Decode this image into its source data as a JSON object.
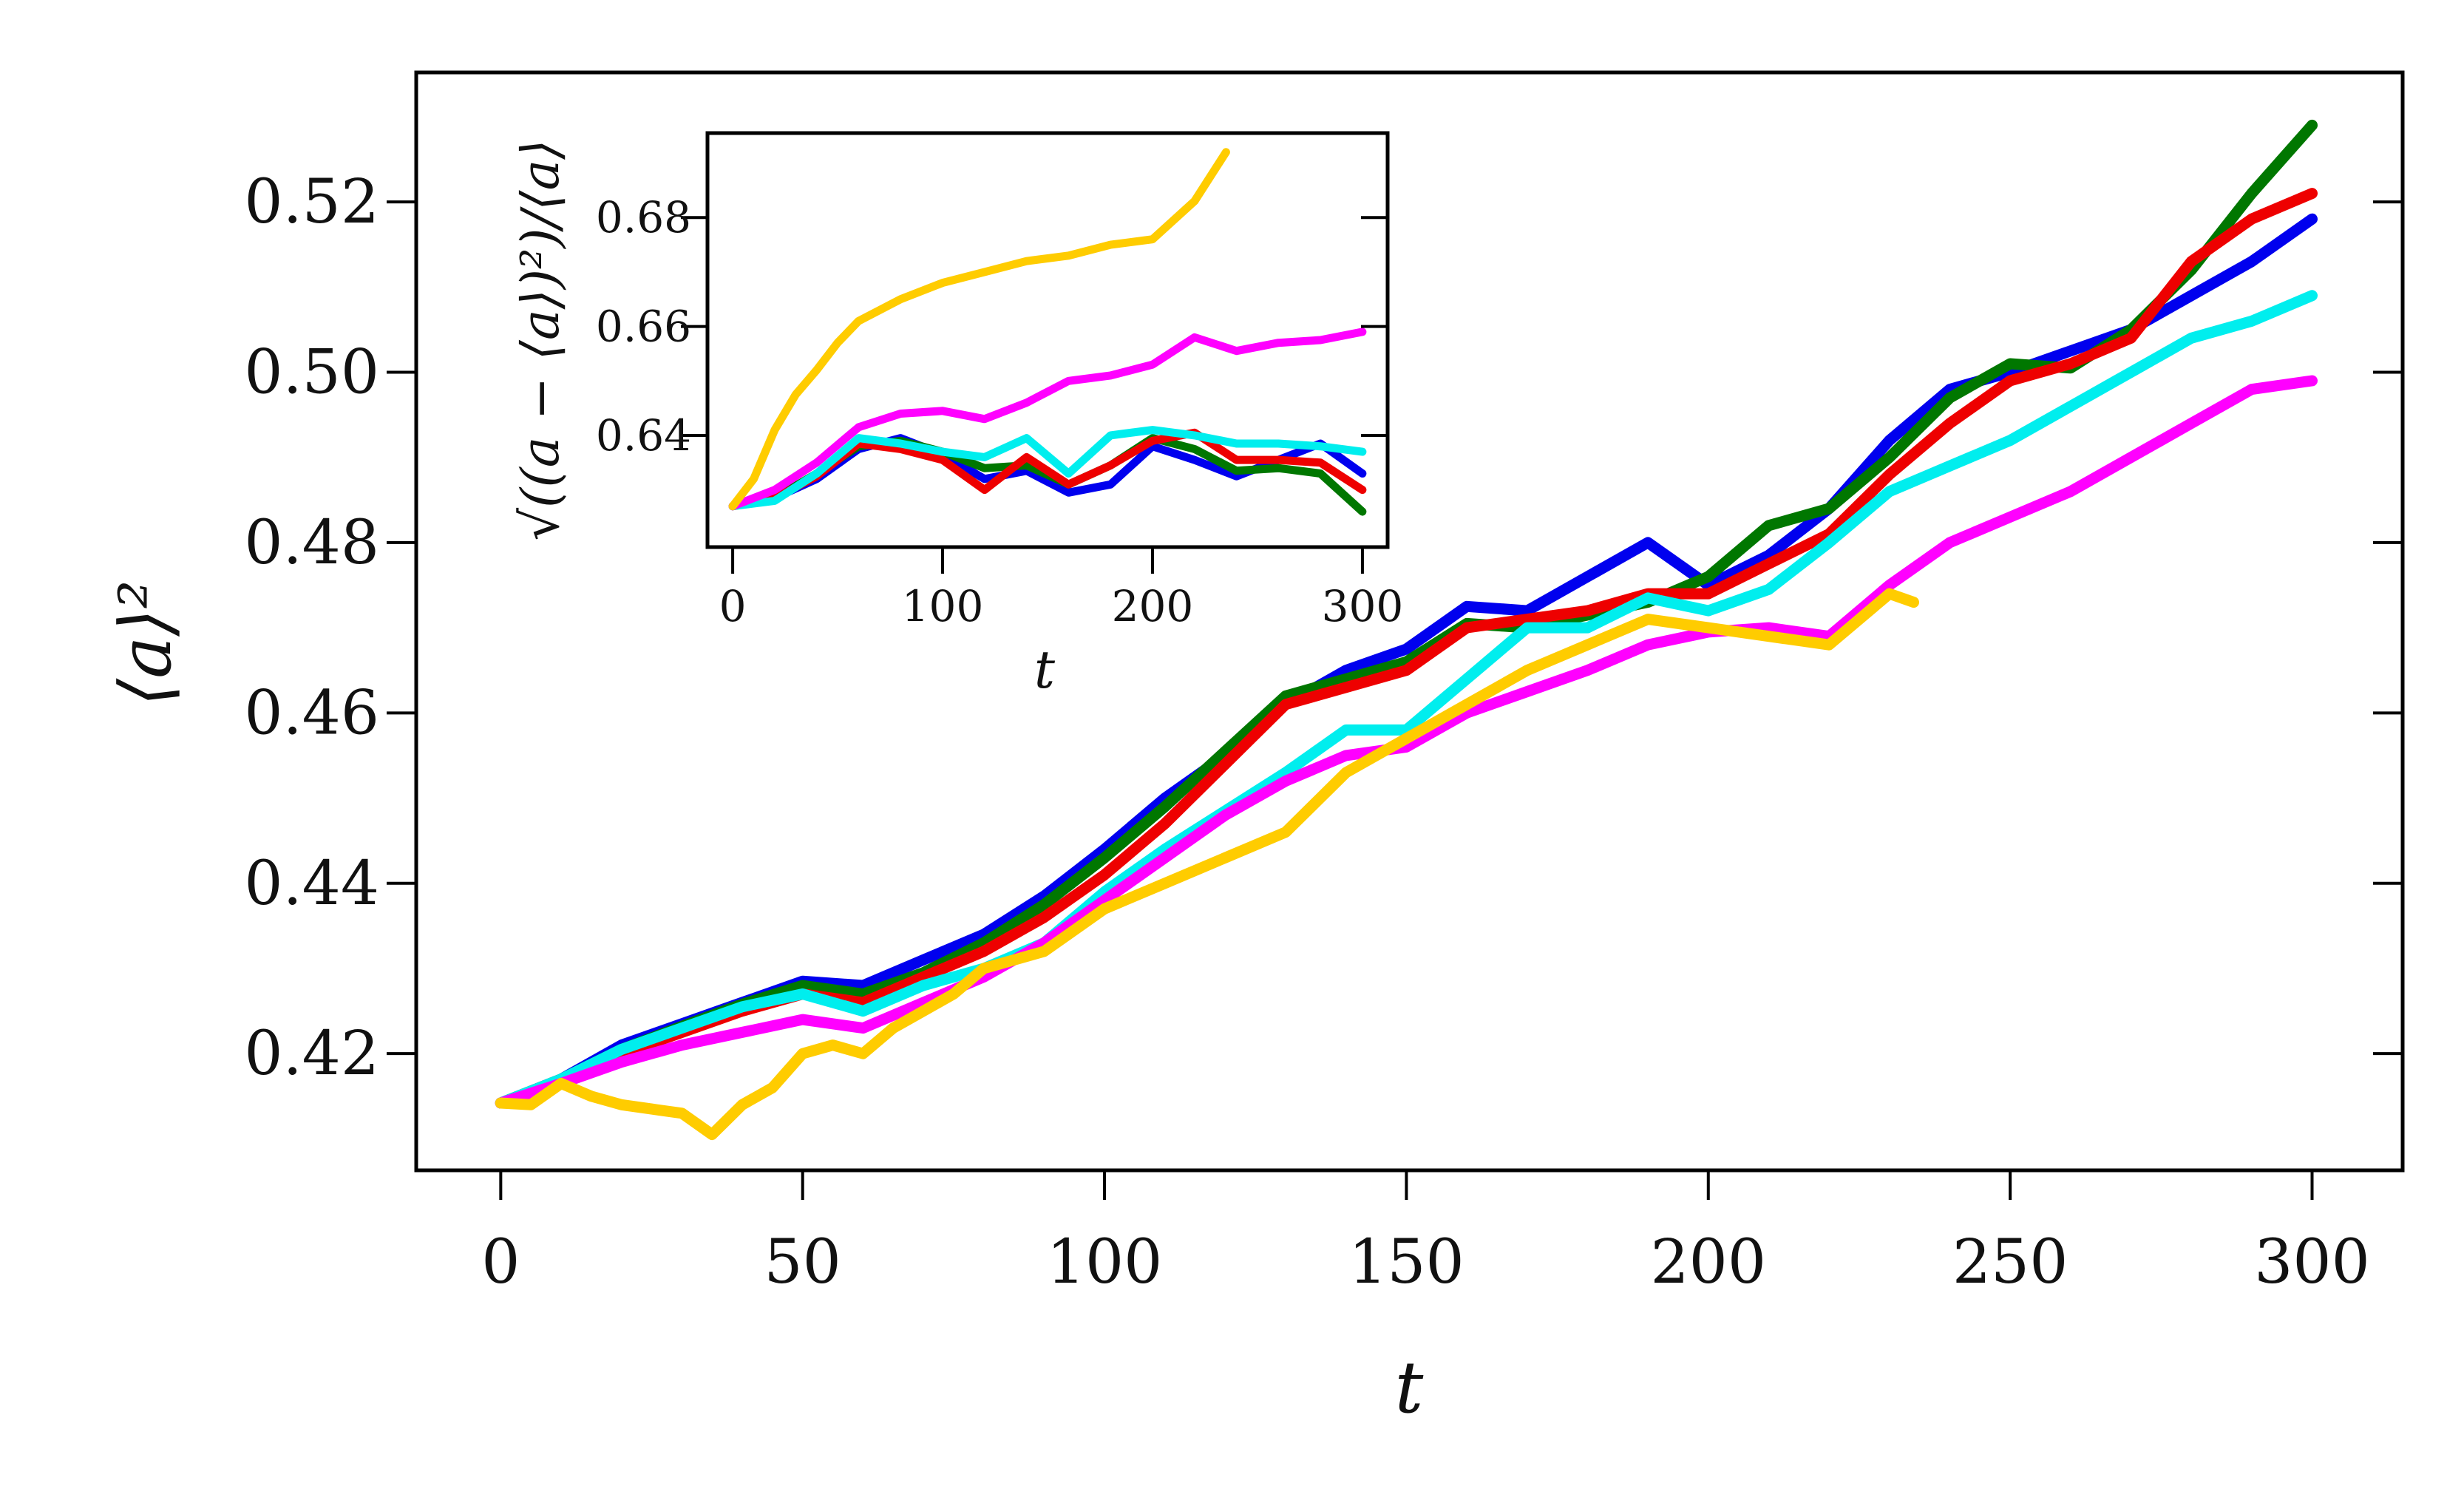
{
  "chart_data": [
    {
      "id": "main",
      "type": "line",
      "xlabel": "t",
      "ylabel": "⟨a⟩²",
      "xlim": [
        -14,
        315
      ],
      "ylim": [
        0.4063,
        0.5352
      ],
      "xticks": [
        0,
        50,
        100,
        150,
        200,
        250,
        300
      ],
      "xtick_labels": [
        "0",
        "50",
        "100",
        "150",
        "200",
        "250",
        "300"
      ],
      "yticks": [
        0.42,
        0.44,
        0.46,
        0.48,
        0.5,
        0.52
      ],
      "ytick_labels": [
        "0.42",
        "0.44",
        "0.46",
        "0.48",
        "0.50",
        "0.52"
      ],
      "ticks_on_right": true,
      "ticks_on_top": false,
      "grid": false,
      "legend": "none",
      "series": [
        {
          "color": "#0000ee",
          "x": [
            0,
            10,
            20,
            30,
            40,
            50,
            60,
            70,
            80,
            90,
            100,
            110,
            120,
            130,
            140,
            150,
            160,
            170,
            180,
            190,
            200,
            210,
            220,
            230,
            240,
            250,
            260,
            270,
            280,
            290,
            300
          ],
          "y": [
            0.4142,
            0.417,
            0.421,
            0.4235,
            0.426,
            0.4285,
            0.428,
            0.431,
            0.434,
            0.4385,
            0.444,
            0.45,
            0.455,
            0.461,
            0.465,
            0.4675,
            0.4725,
            0.472,
            0.476,
            0.48,
            0.475,
            0.4785,
            0.484,
            0.492,
            0.498,
            0.5,
            0.5025,
            0.505,
            0.509,
            0.513,
            0.518
          ]
        },
        {
          "color": "#007700",
          "x": [
            0,
            10,
            20,
            30,
            40,
            50,
            60,
            70,
            80,
            90,
            100,
            110,
            120,
            130,
            140,
            150,
            160,
            170,
            180,
            190,
            200,
            210,
            220,
            230,
            240,
            250,
            260,
            270,
            280,
            290,
            300
          ],
          "y": [
            0.4142,
            0.417,
            0.4205,
            0.4232,
            0.4258,
            0.428,
            0.427,
            0.4295,
            0.433,
            0.4375,
            0.443,
            0.449,
            0.4555,
            0.462,
            0.464,
            0.466,
            0.4705,
            0.47,
            0.4715,
            0.473,
            0.476,
            0.482,
            0.484,
            0.49,
            0.497,
            0.501,
            0.5005,
            0.505,
            0.512,
            0.521,
            0.529
          ]
        },
        {
          "color": "#ee0000",
          "x": [
            0,
            10,
            20,
            30,
            40,
            50,
            60,
            70,
            80,
            90,
            100,
            110,
            120,
            130,
            140,
            150,
            160,
            170,
            180,
            190,
            200,
            210,
            220,
            230,
            240,
            250,
            260,
            270,
            280,
            290,
            300
          ],
          "y": [
            0.4142,
            0.4165,
            0.42,
            0.4225,
            0.425,
            0.427,
            0.426,
            0.429,
            0.432,
            0.436,
            0.441,
            0.447,
            0.454,
            0.461,
            0.463,
            0.465,
            0.47,
            0.471,
            0.472,
            0.474,
            0.474,
            0.4775,
            0.481,
            0.488,
            0.494,
            0.499,
            0.501,
            0.504,
            0.513,
            0.518,
            0.521
          ]
        },
        {
          "color": "#00eeee",
          "x": [
            0,
            10,
            20,
            30,
            40,
            50,
            60,
            70,
            80,
            90,
            100,
            110,
            120,
            130,
            140,
            150,
            160,
            170,
            180,
            190,
            200,
            210,
            220,
            230,
            240,
            250,
            260,
            270,
            280,
            290,
            300
          ],
          "y": [
            0.4142,
            0.417,
            0.4205,
            0.423,
            0.4255,
            0.427,
            0.425,
            0.428,
            0.43,
            0.433,
            0.439,
            0.444,
            0.4485,
            0.453,
            0.458,
            0.458,
            0.464,
            0.47,
            0.47,
            0.4735,
            0.472,
            0.4745,
            0.48,
            0.486,
            0.489,
            0.492,
            0.496,
            0.5,
            0.504,
            0.506,
            0.509
          ]
        },
        {
          "color": "#ff00ff",
          "x": [
            0,
            10,
            20,
            30,
            40,
            50,
            60,
            70,
            80,
            90,
            100,
            110,
            120,
            130,
            140,
            150,
            160,
            170,
            180,
            190,
            200,
            210,
            220,
            230,
            240,
            250,
            260,
            270,
            280,
            290,
            300
          ],
          "y": [
            0.4142,
            0.4165,
            0.419,
            0.421,
            0.4225,
            0.424,
            0.423,
            0.426,
            0.429,
            0.433,
            0.438,
            0.443,
            0.448,
            0.452,
            0.455,
            0.456,
            0.46,
            0.4625,
            0.465,
            0.468,
            0.4695,
            0.47,
            0.469,
            0.475,
            0.48,
            0.483,
            0.486,
            0.49,
            0.494,
            0.498,
            0.499
          ]
        },
        {
          "color": "#ffcc00",
          "x": [
            0,
            5,
            10,
            15,
            20,
            25,
            30,
            35,
            40,
            45,
            50,
            55,
            60,
            65,
            70,
            75,
            80,
            90,
            100,
            110,
            120,
            130,
            140,
            150,
            160,
            170,
            180,
            190,
            200,
            210,
            220,
            230,
            234
          ],
          "y": [
            0.4142,
            0.414,
            0.4165,
            0.415,
            0.414,
            0.4135,
            0.413,
            0.4105,
            0.414,
            0.416,
            0.42,
            0.421,
            0.42,
            0.423,
            0.425,
            0.427,
            0.43,
            0.432,
            0.437,
            0.44,
            0.443,
            0.446,
            0.453,
            0.457,
            0.461,
            0.465,
            0.468,
            0.471,
            0.47,
            0.469,
            0.468,
            0.474,
            0.473
          ]
        }
      ]
    },
    {
      "id": "inset",
      "type": "line",
      "xlabel": "t",
      "ylabel": "√((a − ⟨a⟩)²)/⟨a⟩",
      "xlim": [
        -12,
        312
      ],
      "ylim": [
        0.6195,
        0.6955
      ],
      "xticks": [
        0,
        100,
        200,
        300
      ],
      "xtick_labels": [
        "0",
        "100",
        "200",
        "300"
      ],
      "yticks": [
        0.64,
        0.66,
        0.68
      ],
      "ytick_labels": [
        "0.64",
        "0.66",
        "0.68"
      ],
      "ticks_on_right": true,
      "grid": false,
      "legend": "none",
      "series": [
        {
          "color": "#0000ee",
          "x": [
            0,
            20,
            40,
            60,
            80,
            100,
            120,
            140,
            160,
            180,
            200,
            220,
            240,
            260,
            280,
            300
          ],
          "y": [
            0.627,
            0.6285,
            0.632,
            0.6375,
            0.6395,
            0.6365,
            0.632,
            0.6335,
            0.6295,
            0.631,
            0.638,
            0.6355,
            0.6325,
            0.6355,
            0.6385,
            0.633
          ]
        },
        {
          "color": "#007700",
          "x": [
            0,
            20,
            40,
            60,
            80,
            100,
            120,
            140,
            160,
            180,
            200,
            220,
            240,
            260,
            280,
            300
          ],
          "y": [
            0.627,
            0.6285,
            0.633,
            0.638,
            0.639,
            0.637,
            0.634,
            0.6345,
            0.631,
            0.6345,
            0.6395,
            0.6375,
            0.6335,
            0.634,
            0.633,
            0.626
          ]
        },
        {
          "color": "#ee0000",
          "x": [
            0,
            20,
            40,
            60,
            80,
            100,
            120,
            140,
            160,
            180,
            200,
            220,
            240,
            260,
            280,
            300
          ],
          "y": [
            0.627,
            0.6285,
            0.6325,
            0.6385,
            0.6375,
            0.6355,
            0.63,
            0.636,
            0.631,
            0.6345,
            0.639,
            0.6405,
            0.6355,
            0.6355,
            0.635,
            0.63
          ]
        },
        {
          "color": "#00eeee",
          "x": [
            0,
            20,
            40,
            60,
            80,
            100,
            120,
            140,
            160,
            180,
            200,
            220,
            240,
            260,
            280,
            300
          ],
          "y": [
            0.627,
            0.628,
            0.633,
            0.6395,
            0.6385,
            0.637,
            0.636,
            0.6395,
            0.633,
            0.64,
            0.641,
            0.64,
            0.6385,
            0.6385,
            0.638,
            0.637
          ]
        },
        {
          "color": "#ff00ff",
          "x": [
            0,
            20,
            40,
            60,
            80,
            100,
            120,
            140,
            160,
            180,
            200,
            220,
            240,
            260,
            280,
            300
          ],
          "y": [
            0.627,
            0.63,
            0.635,
            0.6415,
            0.644,
            0.6445,
            0.643,
            0.646,
            0.65,
            0.651,
            0.653,
            0.658,
            0.6555,
            0.657,
            0.6575,
            0.659
          ]
        },
        {
          "color": "#ffcc00",
          "x": [
            0,
            10,
            20,
            30,
            40,
            50,
            60,
            80,
            100,
            120,
            140,
            160,
            180,
            200,
            220,
            235
          ],
          "y": [
            0.627,
            0.632,
            0.641,
            0.6475,
            0.652,
            0.657,
            0.661,
            0.665,
            0.668,
            0.67,
            0.672,
            0.673,
            0.675,
            0.676,
            0.683,
            0.692
          ]
        }
      ]
    }
  ]
}
